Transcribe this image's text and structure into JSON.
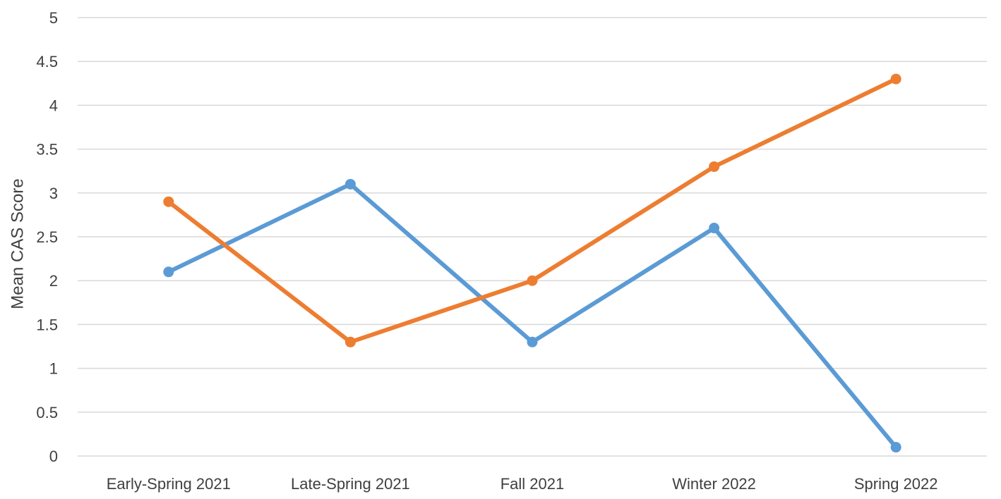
{
  "chart_data": {
    "type": "line",
    "title": "",
    "xlabel": "",
    "ylabel": "Mean CAS Score",
    "categories": [
      "Early-Spring 2021",
      "Late-Spring 2021",
      "Fall 2021",
      "Winter 2022",
      "Spring 2022"
    ],
    "series": [
      {
        "color": "#5b9bd5",
        "values": [
          2.1,
          3.1,
          1.3,
          2.6,
          0.1
        ]
      },
      {
        "color": "#ed7d31",
        "values": [
          2.9,
          1.3,
          2.0,
          3.3,
          4.3
        ]
      }
    ],
    "ylim": [
      0,
      5
    ],
    "yticks": [
      "0",
      "0.5",
      "1",
      "1.5",
      "2",
      "2.5",
      "3",
      "3.5",
      "4",
      "4.5",
      "5"
    ],
    "grid": true,
    "legend": "none"
  }
}
